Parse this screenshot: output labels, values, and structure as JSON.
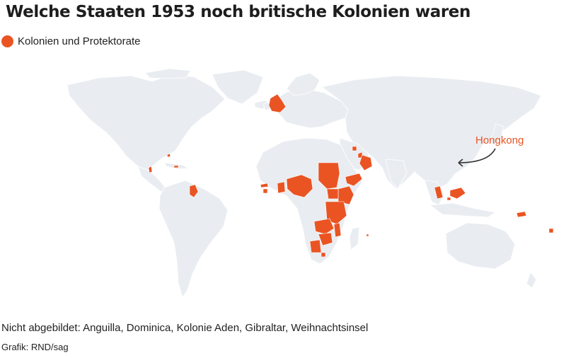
{
  "title": "Welche Staaten 1953 noch britische Kolonien waren",
  "legend": {
    "label": "Kolonien und Protektorate",
    "color": "#ea5423"
  },
  "colors": {
    "land": "#e9edf1",
    "highlight": "#ea5423",
    "annotation": "#ea5423",
    "arrow": "#333333"
  },
  "annotation": {
    "label": "Hongkong"
  },
  "note": "Nicht abgebildet: Anguilla, Dominica, Kolonie Aden, Gibraltar, Weihnachtsinsel",
  "credit": "Grafik: RND/sag"
}
